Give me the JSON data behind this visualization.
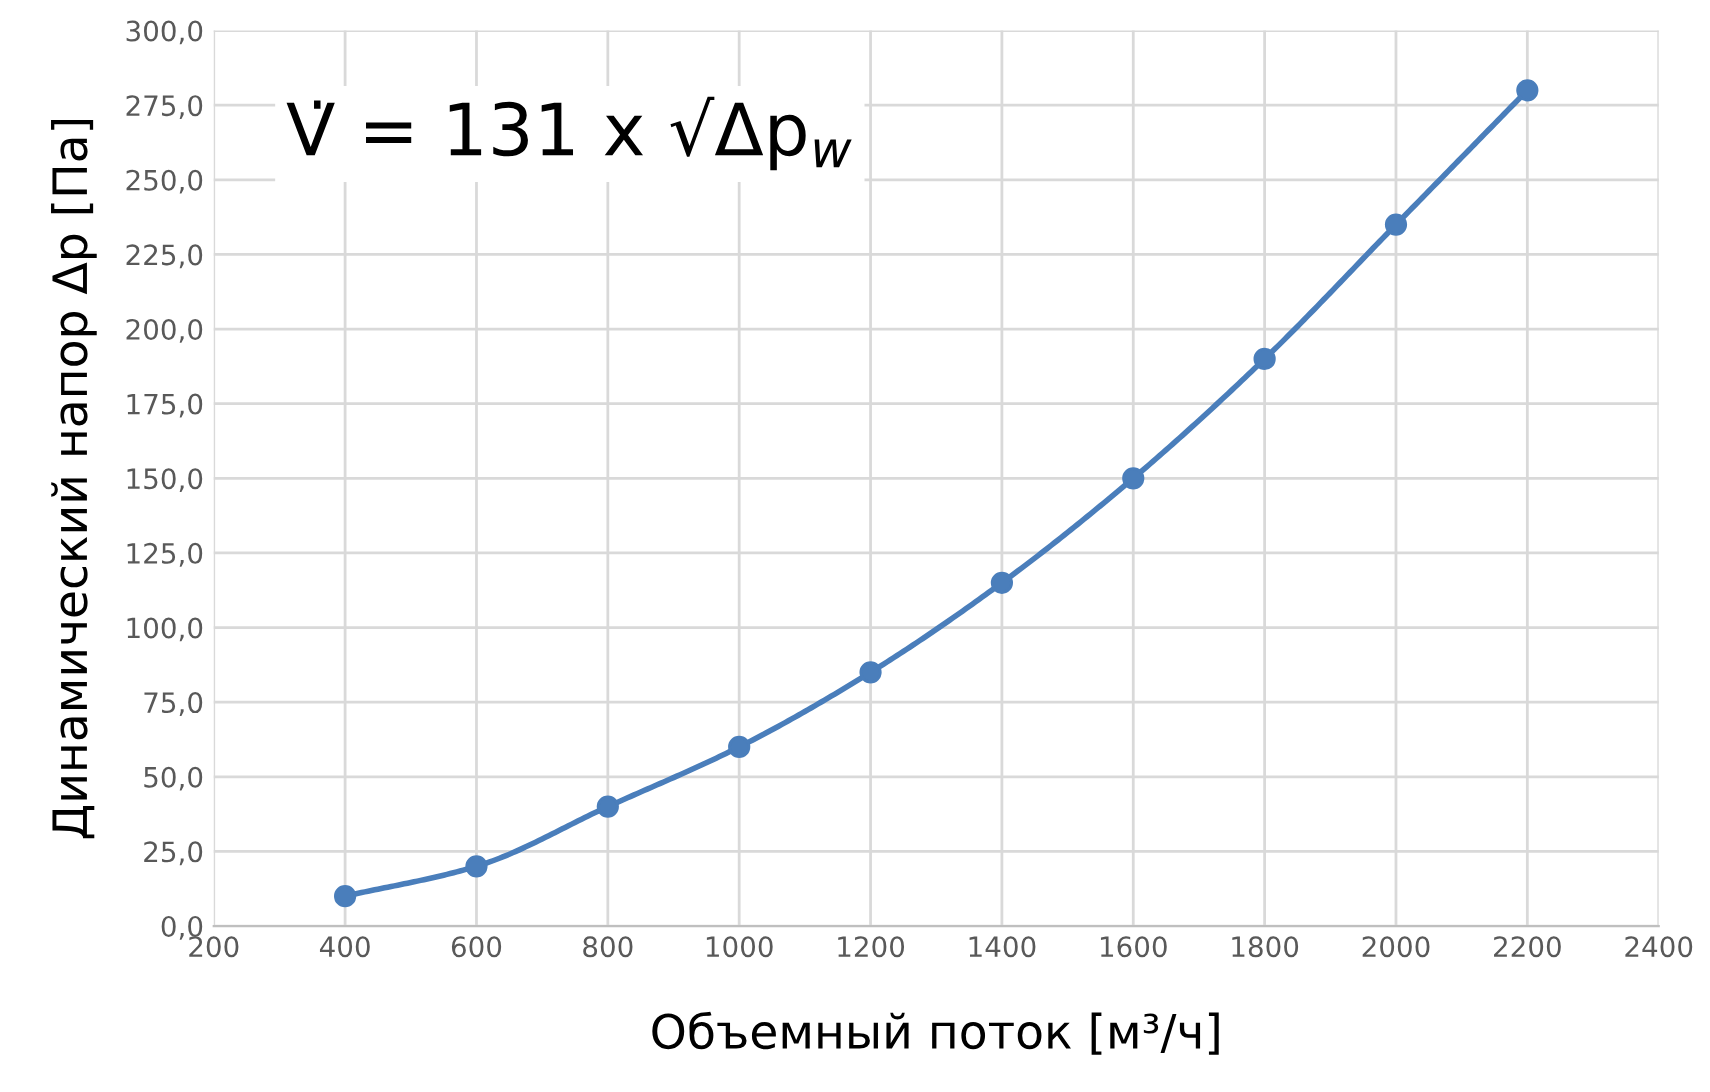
{
  "chart_data": {
    "type": "line",
    "xlabel": "Объемный поток [м³/ч]",
    "ylabel": "Динамический напор Δp [Па]",
    "x": [
      400,
      600,
      800,
      1000,
      1200,
      1400,
      1600,
      1800,
      2000,
      2200
    ],
    "series": [
      {
        "color": "#4a7ebb",
        "values": [
          10,
          20,
          40,
          60,
          85,
          115,
          150,
          190,
          235,
          280
        ]
      }
    ],
    "xlim": [
      200,
      2400
    ],
    "xticks": [
      200,
      400,
      600,
      800,
      1000,
      1200,
      1400,
      1600,
      1800,
      2000,
      2200,
      2400
    ],
    "ylim": [
      0,
      300
    ],
    "yticks": [
      {
        "value": 0,
        "label": "0,0"
      },
      {
        "value": 25,
        "label": "25,0"
      },
      {
        "value": 50,
        "label": "50,0"
      },
      {
        "value": 75,
        "label": "75,0"
      },
      {
        "value": 100,
        "label": "100,0"
      },
      {
        "value": 125,
        "label": "125,0"
      },
      {
        "value": 150,
        "label": "150,0"
      },
      {
        "value": 175,
        "label": "175,0"
      },
      {
        "value": 200,
        "label": "200,0"
      },
      {
        "value": 225,
        "label": "225,0"
      },
      {
        "value": 250,
        "label": "250,0"
      },
      {
        "value": 275,
        "label": "275,0"
      },
      {
        "value": 300,
        "label": "300,0"
      }
    ],
    "grid": true,
    "marker": "circle",
    "line_style": "solid",
    "annotations": [
      "V̇ = 131 x √Δp$_{w}$"
    ]
  }
}
